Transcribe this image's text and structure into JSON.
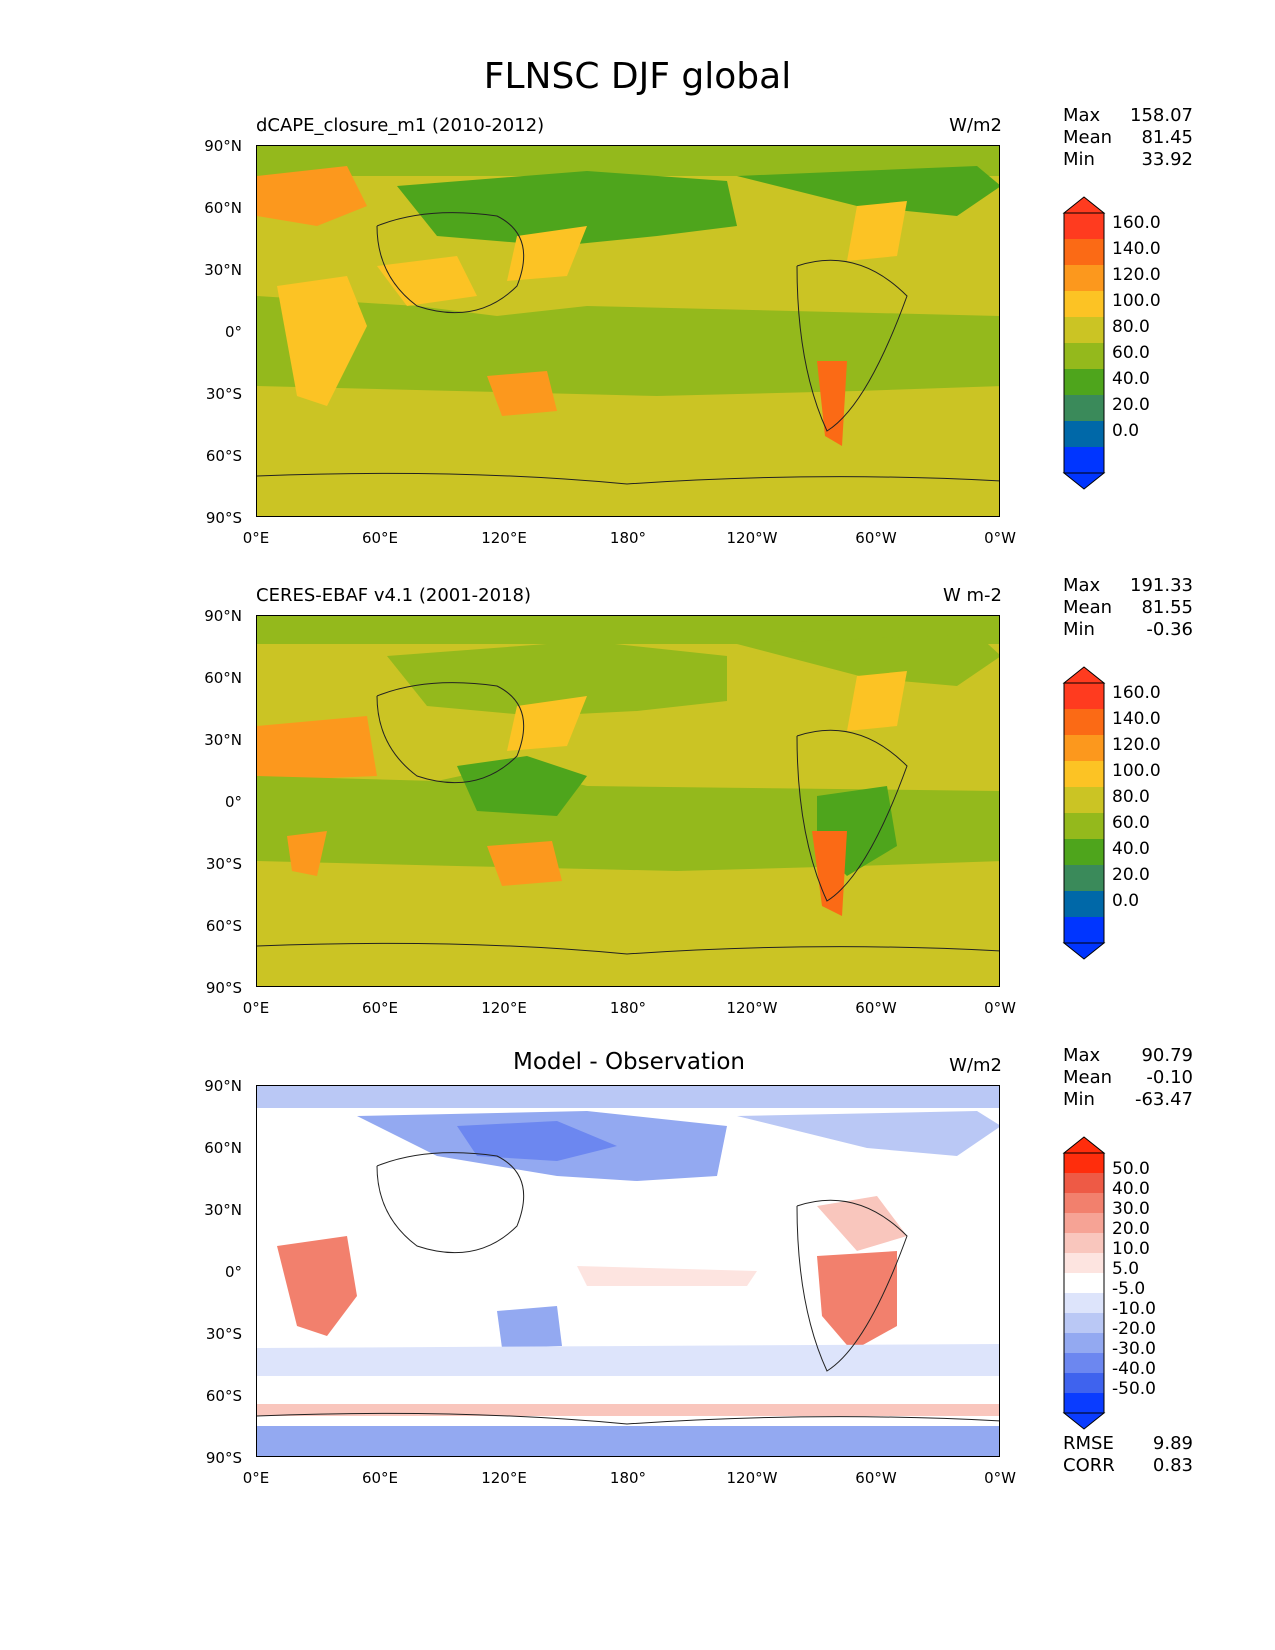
{
  "figure_title": "FLNSC DJF global",
  "xticks": [
    "0°E",
    "60°E",
    "120°E",
    "180°",
    "120°W",
    "60°W",
    "0°W"
  ],
  "yticks": [
    "90°N",
    "60°N",
    "30°N",
    "0°",
    "30°S",
    "60°S",
    "90°S"
  ],
  "panels": [
    {
      "title": "dCAPE_closure_m1 (2010-2012)",
      "units": "W/m2",
      "stats": {
        "max_label": "Max",
        "max": "158.07",
        "mean_label": "Mean",
        "mean": "81.45",
        "min_label": "Min",
        "min": "33.92"
      },
      "colorbar_labels": [
        "160.0",
        "140.0",
        "120.0",
        "100.0",
        "80.0",
        "60.0",
        "40.0",
        "20.0",
        "0.0"
      ]
    },
    {
      "title": "CERES-EBAF v4.1 (2001-2018)",
      "units": "W m-2",
      "stats": {
        "max_label": "Max",
        "max": "191.33",
        "mean_label": "Mean",
        "mean": "81.55",
        "min_label": "Min",
        "min": "-0.36"
      },
      "colorbar_labels": [
        "160.0",
        "140.0",
        "120.0",
        "100.0",
        "80.0",
        "60.0",
        "40.0",
        "20.0",
        "0.0"
      ]
    },
    {
      "title": "Model - Observation",
      "units": "W/m2",
      "stats": {
        "max_label": "Max",
        "max": "90.79",
        "mean_label": "Mean",
        "mean": "-0.10",
        "min_label": "Min",
        "min": "-63.47"
      },
      "colorbar_labels": [
        "50.0",
        "40.0",
        "30.0",
        "20.0",
        "10.0",
        "5.0",
        "-5.0",
        "-10.0",
        "-20.0",
        "-30.0",
        "-40.0",
        "-50.0"
      ],
      "footer": {
        "rmse_label": "RMSE",
        "rmse": "9.89",
        "corr_label": "CORR",
        "corr": "0.83"
      }
    }
  ],
  "colors": {
    "abs_scale": [
      "#0035ff",
      "#0068a8",
      "#3a8a5a",
      "#4ea51c",
      "#94b91c",
      "#cbc424",
      "#fcc324",
      "#fc981d",
      "#fb6a15",
      "#ff3b1f"
    ],
    "diff_scale": [
      "#0a3cff",
      "#3f63ee",
      "#6c87f0",
      "#93a9f1",
      "#bac8f5",
      "#dde4fb",
      "#ffffff",
      "#fde4e0",
      "#f9c6bd",
      "#f6a395",
      "#f2806d",
      "#ee5a45",
      "#ff2d0c"
    ]
  }
}
